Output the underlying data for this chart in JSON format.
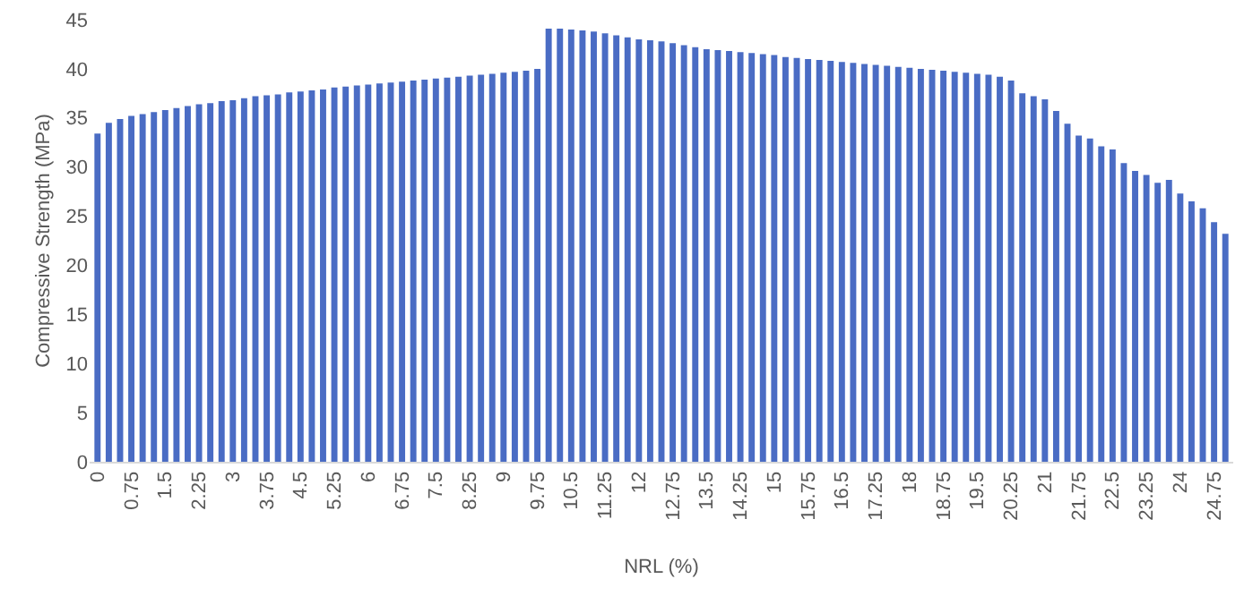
{
  "chart_data": {
    "type": "bar",
    "xlabel": "NRL (%)",
    "ylabel": "Compressive Strength (MPa)",
    "categories": [
      "0",
      null,
      null,
      "0.75",
      null,
      null,
      "1.5",
      null,
      null,
      "2.25",
      null,
      null,
      "3",
      null,
      null,
      "3.75",
      null,
      null,
      "4.5",
      null,
      null,
      "5.25",
      null,
      null,
      "6",
      null,
      null,
      "6.75",
      null,
      null,
      "7.5",
      null,
      null,
      "8.25",
      null,
      null,
      "9",
      null,
      null,
      "9.75",
      null,
      null,
      "10.5",
      null,
      null,
      "11.25",
      null,
      null,
      "12",
      null,
      null,
      "12.75",
      null,
      null,
      "13.5",
      null,
      null,
      "14.25",
      null,
      null,
      "15",
      null,
      null,
      "15.75",
      null,
      null,
      "16.5",
      null,
      null,
      "17.25",
      null,
      null,
      "18",
      null,
      null,
      "18.75",
      null,
      null,
      "19.5",
      null,
      null,
      "20.25",
      null,
      null,
      "21",
      null,
      null,
      "21.75",
      null,
      null,
      "22.5",
      null,
      null,
      "23.25",
      null,
      null,
      "24",
      null,
      null,
      "24.75",
      null
    ],
    "values": [
      33.4,
      34.5,
      34.9,
      35.2,
      35.4,
      35.6,
      35.8,
      36.0,
      36.2,
      36.4,
      36.5,
      36.7,
      36.8,
      37.0,
      37.2,
      37.3,
      37.4,
      37.6,
      37.7,
      37.8,
      37.9,
      38.1,
      38.2,
      38.3,
      38.4,
      38.5,
      38.6,
      38.7,
      38.8,
      38.9,
      39.0,
      39.1,
      39.2,
      39.3,
      39.4,
      39.5,
      39.6,
      39.7,
      39.8,
      40.0,
      44.1,
      44.1,
      44.0,
      43.9,
      43.8,
      43.6,
      43.4,
      43.2,
      43.0,
      42.9,
      42.8,
      42.6,
      42.4,
      42.2,
      42.0,
      41.9,
      41.8,
      41.7,
      41.6,
      41.5,
      41.4,
      41.2,
      41.1,
      41.0,
      40.9,
      40.8,
      40.7,
      40.6,
      40.5,
      40.4,
      40.3,
      40.2,
      40.1,
      40.0,
      39.9,
      39.8,
      39.7,
      39.6,
      39.5,
      39.4,
      39.2,
      38.8,
      37.5,
      37.2,
      36.9,
      35.7,
      34.4,
      33.2,
      32.9,
      32.1,
      31.8,
      30.4,
      29.6,
      29.2,
      28.4,
      28.7,
      27.3,
      26.5,
      25.8,
      24.4,
      23.2
    ],
    "color": "#4a6cc4",
    "ylim": [
      0,
      45
    ],
    "yticks": [
      0,
      5,
      10,
      15,
      20,
      25,
      30,
      35,
      40,
      45
    ],
    "grid": false
  }
}
